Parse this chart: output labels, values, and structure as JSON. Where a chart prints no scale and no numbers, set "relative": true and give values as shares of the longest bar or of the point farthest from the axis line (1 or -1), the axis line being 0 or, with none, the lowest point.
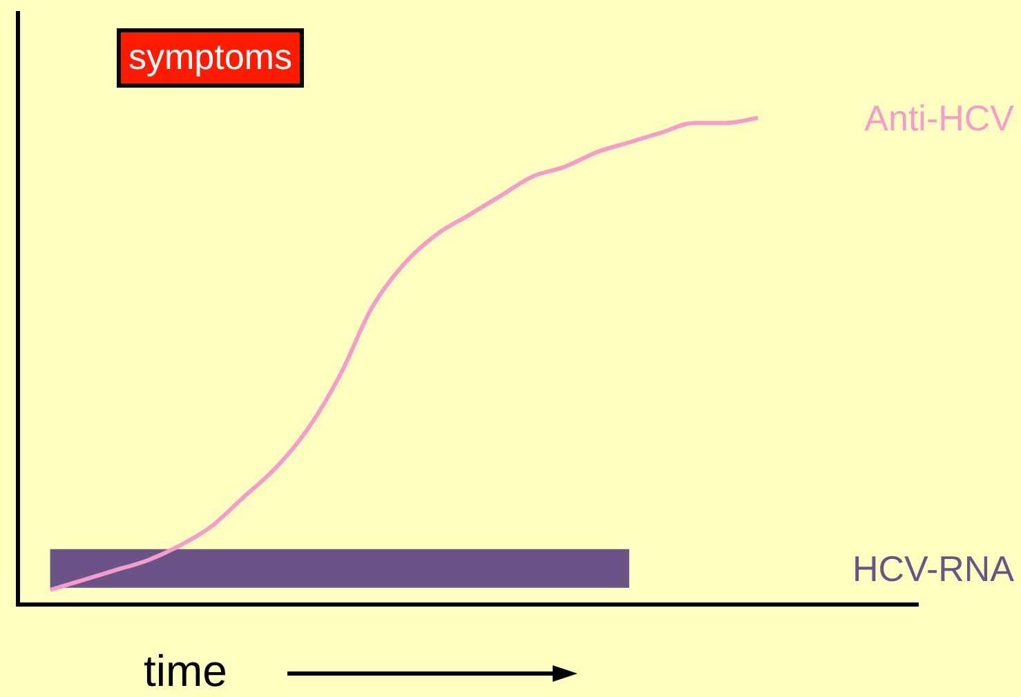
{
  "chart_data": {
    "type": "line",
    "relative": true,
    "xlabel": "time",
    "annotations": [
      "symptoms"
    ],
    "legend": false,
    "marker": "none",
    "line_style": "solid",
    "categories": [
      null,
      null,
      null,
      null,
      null,
      null,
      null,
      null,
      null,
      null,
      null,
      null,
      null,
      null,
      null,
      null,
      null,
      null,
      null,
      null,
      null,
      null,
      null,
      null,
      null,
      null,
      null,
      null,
      null
    ],
    "series": [
      {
        "name": "Anti-HCV",
        "color": "#f59ccb",
        "values": [
          null,
          0.03,
          0.05,
          0.07,
          0.09,
          0.12,
          0.16,
          0.22,
          0.28,
          0.36,
          0.47,
          0.61,
          0.7,
          0.76,
          0.8,
          0.84,
          0.88,
          0.9,
          0.93,
          0.95,
          0.97,
          0.99,
          0.99,
          1,
          null,
          null,
          null,
          null,
          null
        ]
      },
      {
        "name": "HCV-RNA",
        "color": "#6b5388",
        "values": [
          null,
          0.074,
          0.074,
          0.074,
          0.074,
          0.074,
          0.074,
          0.074,
          0.074,
          0.074,
          0.074,
          0.074,
          0.074,
          0.074,
          0.074,
          0.074,
          0.074,
          0.074,
          0.074,
          0.074,
          null,
          null,
          null,
          null,
          null,
          null,
          null,
          null,
          null
        ]
      }
    ]
  }
}
